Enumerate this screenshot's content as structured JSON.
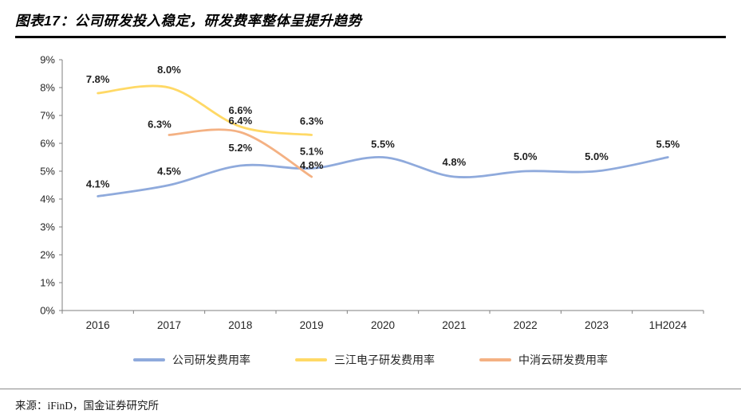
{
  "header": {
    "title": "图表17：公司研发投入稳定，研发费率整体呈提升趋势"
  },
  "footer": {
    "source": "来源：iFinD，国金证券研究所"
  },
  "chart_data": {
    "type": "line",
    "title": "",
    "xlabel": "",
    "ylabel": "",
    "categories": [
      "2016",
      "2017",
      "2018",
      "2019",
      "2020",
      "2021",
      "2022",
      "2023",
      "1H2024"
    ],
    "yticks": [
      "0%",
      "1%",
      "2%",
      "3%",
      "4%",
      "5%",
      "6%",
      "7%",
      "8%",
      "9%"
    ],
    "ylim": [
      0,
      9
    ],
    "grid": false,
    "line_style": "smooth",
    "legend_position": "bottom",
    "series": [
      {
        "name": "公司研发费用率",
        "color": "#8FAADC",
        "values": [
          4.1,
          4.5,
          5.2,
          5.1,
          5.5,
          4.8,
          5.0,
          5.0,
          5.5
        ],
        "labels": [
          "4.1%",
          "4.5%",
          "5.2%",
          "5.1%",
          "5.5%",
          "4.8%",
          "5.0%",
          "5.0%",
          "5.5%"
        ],
        "label_dy": [
          -11,
          -13,
          -18,
          -17,
          -12,
          -14,
          -14,
          -14,
          -12
        ]
      },
      {
        "name": "三江电子研发费用率",
        "color": "#FFD966",
        "values": [
          7.8,
          8.0,
          6.6,
          6.3,
          null,
          null,
          null,
          null,
          null
        ],
        "labels": [
          "7.8%",
          "8.0%",
          "6.6%",
          "6.3%",
          null,
          null,
          null,
          null,
          null
        ],
        "label_dy": [
          -13,
          -18,
          -16,
          -13,
          null,
          null,
          null,
          null,
          null
        ]
      },
      {
        "name": "中消云研发费用率",
        "color": "#F4B183",
        "values": [
          null,
          6.3,
          6.4,
          4.8,
          null,
          null,
          null,
          null,
          null
        ],
        "labels": [
          null,
          "6.3%",
          "6.4%",
          "4.8%",
          null,
          null,
          null,
          null,
          null
        ],
        "label_dy": [
          null,
          -9,
          -10,
          -10,
          null,
          null,
          null,
          null,
          null
        ],
        "label_dx": [
          null,
          -12,
          0,
          0,
          null,
          null,
          null,
          null,
          null
        ]
      }
    ]
  }
}
